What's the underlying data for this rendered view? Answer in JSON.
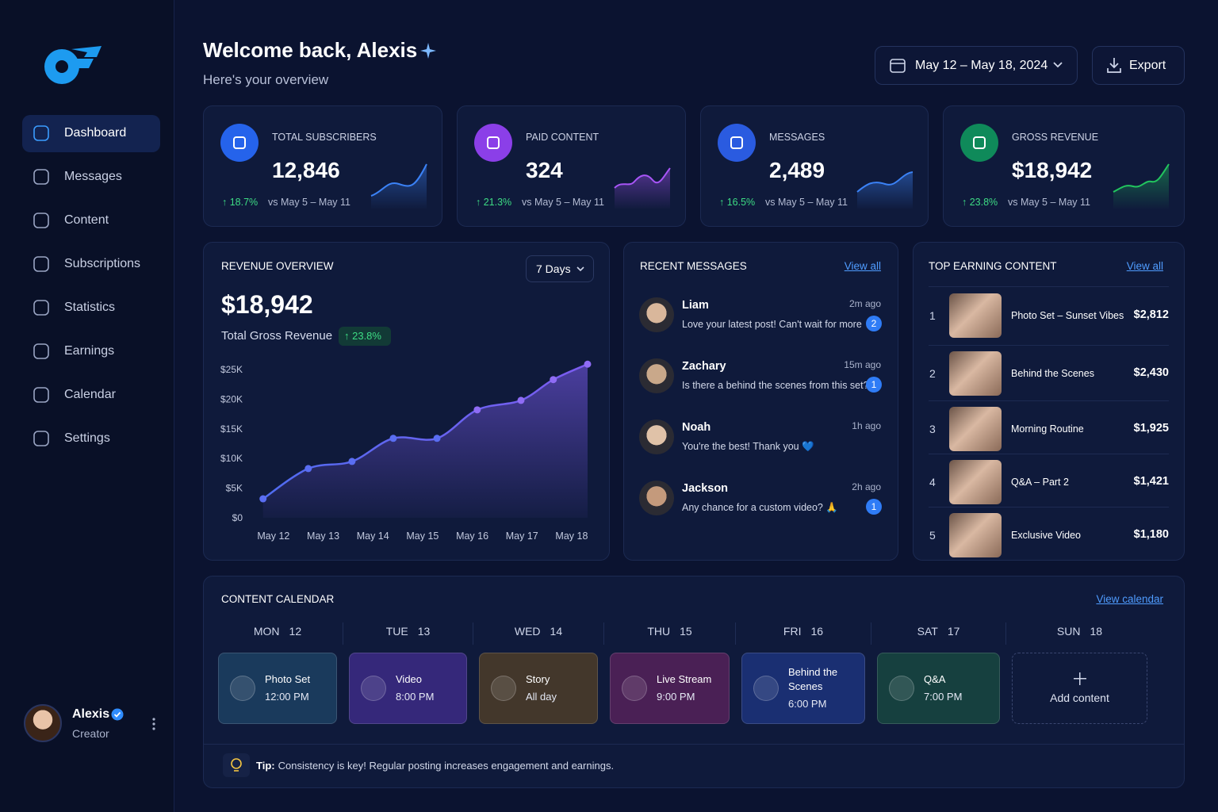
{
  "header": {
    "title": "Welcome back, Alexis",
    "subtitle": "Here's your overview",
    "date_range": "May 12 – May 18, 2024",
    "export": "Export"
  },
  "sidebar": {
    "nav": [
      "Dashboard",
      "Messages",
      "Content",
      "Subscriptions",
      "Statistics",
      "Earnings",
      "Calendar",
      "Settings"
    ],
    "user": {
      "name": "Alexis",
      "role": "Creator"
    }
  },
  "stats": [
    {
      "label": "TOTAL SUBSCRIBERS",
      "value": "12,846",
      "change": "↑ 18.7%",
      "compare": "vs May 5 – May 11",
      "color": "#2563eb"
    },
    {
      "label": "PAID CONTENT",
      "value": "324",
      "change": "↑ 21.3%",
      "compare": "vs May 5 – May 11",
      "color": "#8b3fe8"
    },
    {
      "label": "MESSAGES",
      "value": "2,489",
      "change": "↑ 16.5%",
      "compare": "vs May 5 – May 11",
      "color": "#2a5be0"
    },
    {
      "label": "GROSS REVENUE",
      "value": "$18,942",
      "change": "↑ 23.8%",
      "compare": "vs May 5 – May 11",
      "color": "#0f8a5a"
    }
  ],
  "revenue": {
    "title": "REVENUE OVERVIEW",
    "range": "7 Days",
    "total": "$18,942",
    "caption": "Total Gross Revenue",
    "change": "↑ 23.8%"
  },
  "chart_data": {
    "type": "line",
    "color": "#7c5cf0",
    "grid": false,
    "x": [
      -0.21,
      0.7,
      1.58,
      2.41,
      3.29,
      4.1,
      4.98,
      5.63,
      6.32
    ],
    "values": [
      3200,
      8300,
      9500,
      13400,
      13400,
      18200,
      19800,
      23300,
      25900
    ],
    "xlim": [
      -0.7,
      6.4
    ],
    "xticks": [
      {
        "value": 0,
        "label": "May 12"
      },
      {
        "value": 1,
        "label": "May 13"
      },
      {
        "value": 2,
        "label": "May 14"
      },
      {
        "value": 3,
        "label": "May 15"
      },
      {
        "value": 4,
        "label": "May 16"
      },
      {
        "value": 5,
        "label": "May 17"
      },
      {
        "value": 6,
        "label": "May 18"
      }
    ],
    "ylim": [
      0,
      26000
    ],
    "yticks": [
      {
        "value": 0,
        "label": "$0"
      },
      {
        "value": 5000,
        "label": "$5K"
      },
      {
        "value": 10000,
        "label": "$10K"
      },
      {
        "value": 15000,
        "label": "$15K"
      },
      {
        "value": 20000,
        "label": "$20K"
      },
      {
        "value": 25000,
        "label": "$25K"
      }
    ]
  },
  "messages": {
    "title": "RECENT MESSAGES",
    "link": "View all",
    "items": [
      {
        "name": "Liam",
        "time": "2m ago",
        "text": "Love your latest post! Can't wait for more 🔥",
        "unread": 2
      },
      {
        "name": "Zachary",
        "time": "15m ago",
        "text": "Is there a behind the scenes from this set?",
        "unread": 1
      },
      {
        "name": "Noah",
        "time": "1h ago",
        "text": "You're the best! Thank you 💙"
      },
      {
        "name": "Jackson",
        "time": "2h ago",
        "text": "Any chance for a custom video? 🙏",
        "unread": 1
      }
    ]
  },
  "top_content": {
    "title": "TOP EARNING CONTENT",
    "link": "View all",
    "items": [
      {
        "rank": 1,
        "title": "Photo Set – Sunset Vibes",
        "amount": "$2,812"
      },
      {
        "rank": 2,
        "title": "Behind the Scenes",
        "amount": "$2,430"
      },
      {
        "rank": 3,
        "title": "Morning Routine",
        "amount": "$1,925"
      },
      {
        "rank": 4,
        "title": "Q&A – Part 2",
        "amount": "$1,421"
      },
      {
        "rank": 5,
        "title": "Exclusive Video",
        "amount": "$1,180"
      }
    ]
  },
  "calendar": {
    "title": "CONTENT CALENDAR",
    "link": "View calendar",
    "days": [
      {
        "day": "MON",
        "date": "12",
        "title": "Photo Set",
        "time": "12:00 PM",
        "color": "#1a3a5c"
      },
      {
        "day": "TUE",
        "date": "13",
        "title": "Video",
        "time": "8:00 PM",
        "color": "#35287a"
      },
      {
        "day": "WED",
        "date": "14",
        "title": "Story",
        "time": "All day",
        "color": "#43372b"
      },
      {
        "day": "THU",
        "date": "15",
        "title": "Live Stream",
        "time": "9:00 PM",
        "color": "#4a2055"
      },
      {
        "day": "FRI",
        "date": "16",
        "title": "Behind the Scenes",
        "time": "6:00 PM",
        "color": "#1a2f72"
      },
      {
        "day": "SAT",
        "date": "17",
        "title": "Q&A",
        "time": "7:00 PM",
        "color": "#16403f"
      },
      {
        "day": "SUN",
        "date": "18",
        "title": "Add content"
      }
    ],
    "tip_label": "Tip:",
    "tip": "Consistency is key! Regular posting increases engagement and earnings."
  }
}
